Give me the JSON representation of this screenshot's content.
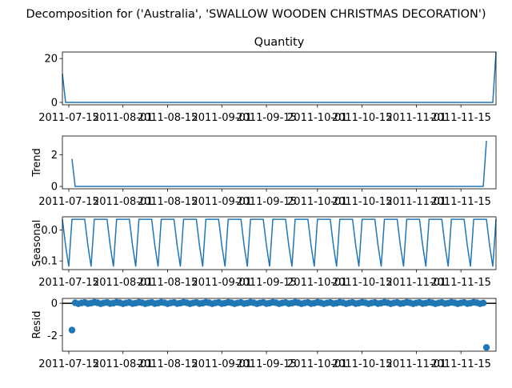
{
  "figure_title": "Decomposition for ('Australia', 'SWALLOW WOODEN CHRISTMAS DECORATION')",
  "colors": {
    "line": "#1f77b4",
    "axis": "#000000",
    "background": "#ffffff"
  },
  "x_tick_labels": [
    "2011-07-15",
    "2011-08-01",
    "2011-08-15",
    "2011-09-01",
    "2011-09-15",
    "2011-10-01",
    "2011-10-15",
    "2011-11-01",
    "2011-11-15"
  ],
  "chart_data": [
    {
      "type": "line",
      "panel": "observed",
      "title": "Quantity",
      "ylabel": "",
      "xlim": [
        "2011-07-13",
        "2011-11-26"
      ],
      "ylim": [
        -1.1,
        23
      ],
      "yticks": [
        0,
        20
      ],
      "points": [
        [
          "2011-07-13",
          13
        ],
        [
          "2011-07-14",
          0
        ],
        [
          "2011-11-25",
          0
        ],
        [
          "2011-11-26",
          23
        ]
      ]
    },
    {
      "type": "line",
      "panel": "trend",
      "title": "",
      "ylabel": "Trend",
      "xlim": [
        "2011-07-13",
        "2011-11-26"
      ],
      "ylim": [
        -0.15,
        3.2
      ],
      "yticks": [
        0,
        2
      ],
      "points": [
        [
          "2011-07-16",
          1.75
        ],
        [
          "2011-07-17",
          0
        ],
        [
          "2011-11-22",
          0
        ],
        [
          "2011-11-23",
          2.9
        ]
      ]
    },
    {
      "type": "line",
      "panel": "seasonal",
      "title": "",
      "ylabel": "Seasonal",
      "xlim": [
        "2011-07-13",
        "2011-11-26"
      ],
      "ylim": [
        -0.128,
        0.043
      ],
      "yticks": [
        0.0,
        -0.1
      ],
      "start": "2011-07-13",
      "period_days": 7,
      "pattern": [
        0.035,
        -0.05,
        -0.118,
        0.035,
        0.035,
        0.035,
        0.035
      ],
      "count": 137
    },
    {
      "type": "scatter",
      "panel": "resid",
      "title": "",
      "ylabel": "Resid",
      "xlim": [
        "2011-07-13",
        "2011-11-26"
      ],
      "ylim": [
        -2.95,
        0.3
      ],
      "yticks": [
        0,
        -2
      ],
      "zero_line": true,
      "first_date": "2011-07-16",
      "last_date": "2011-11-23",
      "baseline_value": 0.0,
      "outliers": [
        [
          "2011-07-16",
          -1.65
        ],
        [
          "2011-11-23",
          -2.72
        ]
      ],
      "near_zero_offsets": [
        0.06,
        0.03,
        -0.03,
        0.02,
        0.05,
        -0.02,
        0.01
      ]
    }
  ]
}
